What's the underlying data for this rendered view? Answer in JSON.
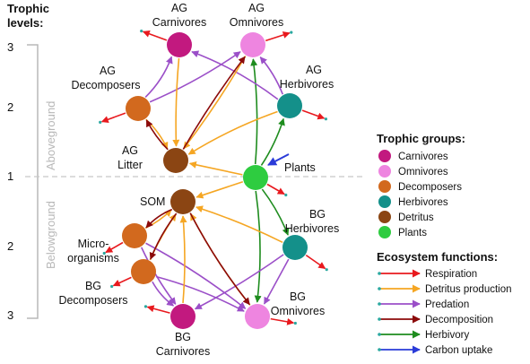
{
  "axis": {
    "title_line1": "Trophic",
    "title_line2": "levels:",
    "levels": [
      "3",
      "2",
      "1",
      "2",
      "3"
    ],
    "above_label": "Aboveground",
    "below_label": "Belowground"
  },
  "nodes": [
    {
      "id": "ag_carn",
      "label": [
        "AG",
        "Carnivores"
      ],
      "color": "#c2197f"
    },
    {
      "id": "ag_omni",
      "label": [
        "AG",
        "Omnivores"
      ],
      "color": "#ee85e0"
    },
    {
      "id": "ag_herb",
      "label": [
        "AG",
        "Herbivores"
      ],
      "color": "#14908a"
    },
    {
      "id": "ag_decomp",
      "label": [
        "AG",
        "Decomposers"
      ],
      "color": "#d2691e"
    },
    {
      "id": "ag_litter",
      "label": [
        "AG",
        "Litter"
      ],
      "color": "#8b4513"
    },
    {
      "id": "plants",
      "label": [
        "Plants"
      ],
      "color": "#2ecc40"
    },
    {
      "id": "som",
      "label": [
        "SOM"
      ],
      "color": "#8b4513"
    },
    {
      "id": "micro",
      "label": [
        "Micro-",
        "organisms"
      ],
      "color": "#d2691e"
    },
    {
      "id": "bg_decomp",
      "label": [
        "BG",
        "Decomposers"
      ],
      "color": "#d2691e"
    },
    {
      "id": "bg_herb",
      "label": [
        "BG",
        "Herbivores"
      ],
      "color": "#14908a"
    },
    {
      "id": "bg_carn",
      "label": [
        "BG",
        "Carnivores"
      ],
      "color": "#c2197f"
    },
    {
      "id": "bg_omni",
      "label": [
        "BG",
        "Omnivores"
      ],
      "color": "#ee85e0"
    }
  ],
  "trophic_groups": {
    "title": "Trophic groups:",
    "items": [
      {
        "label": "Carnivores",
        "color": "#c2197f"
      },
      {
        "label": "Omnivores",
        "color": "#ee85e0"
      },
      {
        "label": "Decomposers",
        "color": "#d2691e"
      },
      {
        "label": "Herbivores",
        "color": "#14908a"
      },
      {
        "label": "Detritus",
        "color": "#8b4513"
      },
      {
        "label": "Plants",
        "color": "#2ecc40"
      }
    ]
  },
  "ecosystem_functions": {
    "title": "Ecosystem functions:",
    "items": [
      {
        "label": "Respiration",
        "color": "#e8191e"
      },
      {
        "label": "Detritus production",
        "color": "#f5a623"
      },
      {
        "label": "Predation",
        "color": "#9b4fc8"
      },
      {
        "label": "Decomposition",
        "color": "#8b0a0a"
      },
      {
        "label": "Herbivory",
        "color": "#1e8c1e"
      },
      {
        "label": "Carbon uptake",
        "color": "#2a3bd8"
      }
    ]
  }
}
